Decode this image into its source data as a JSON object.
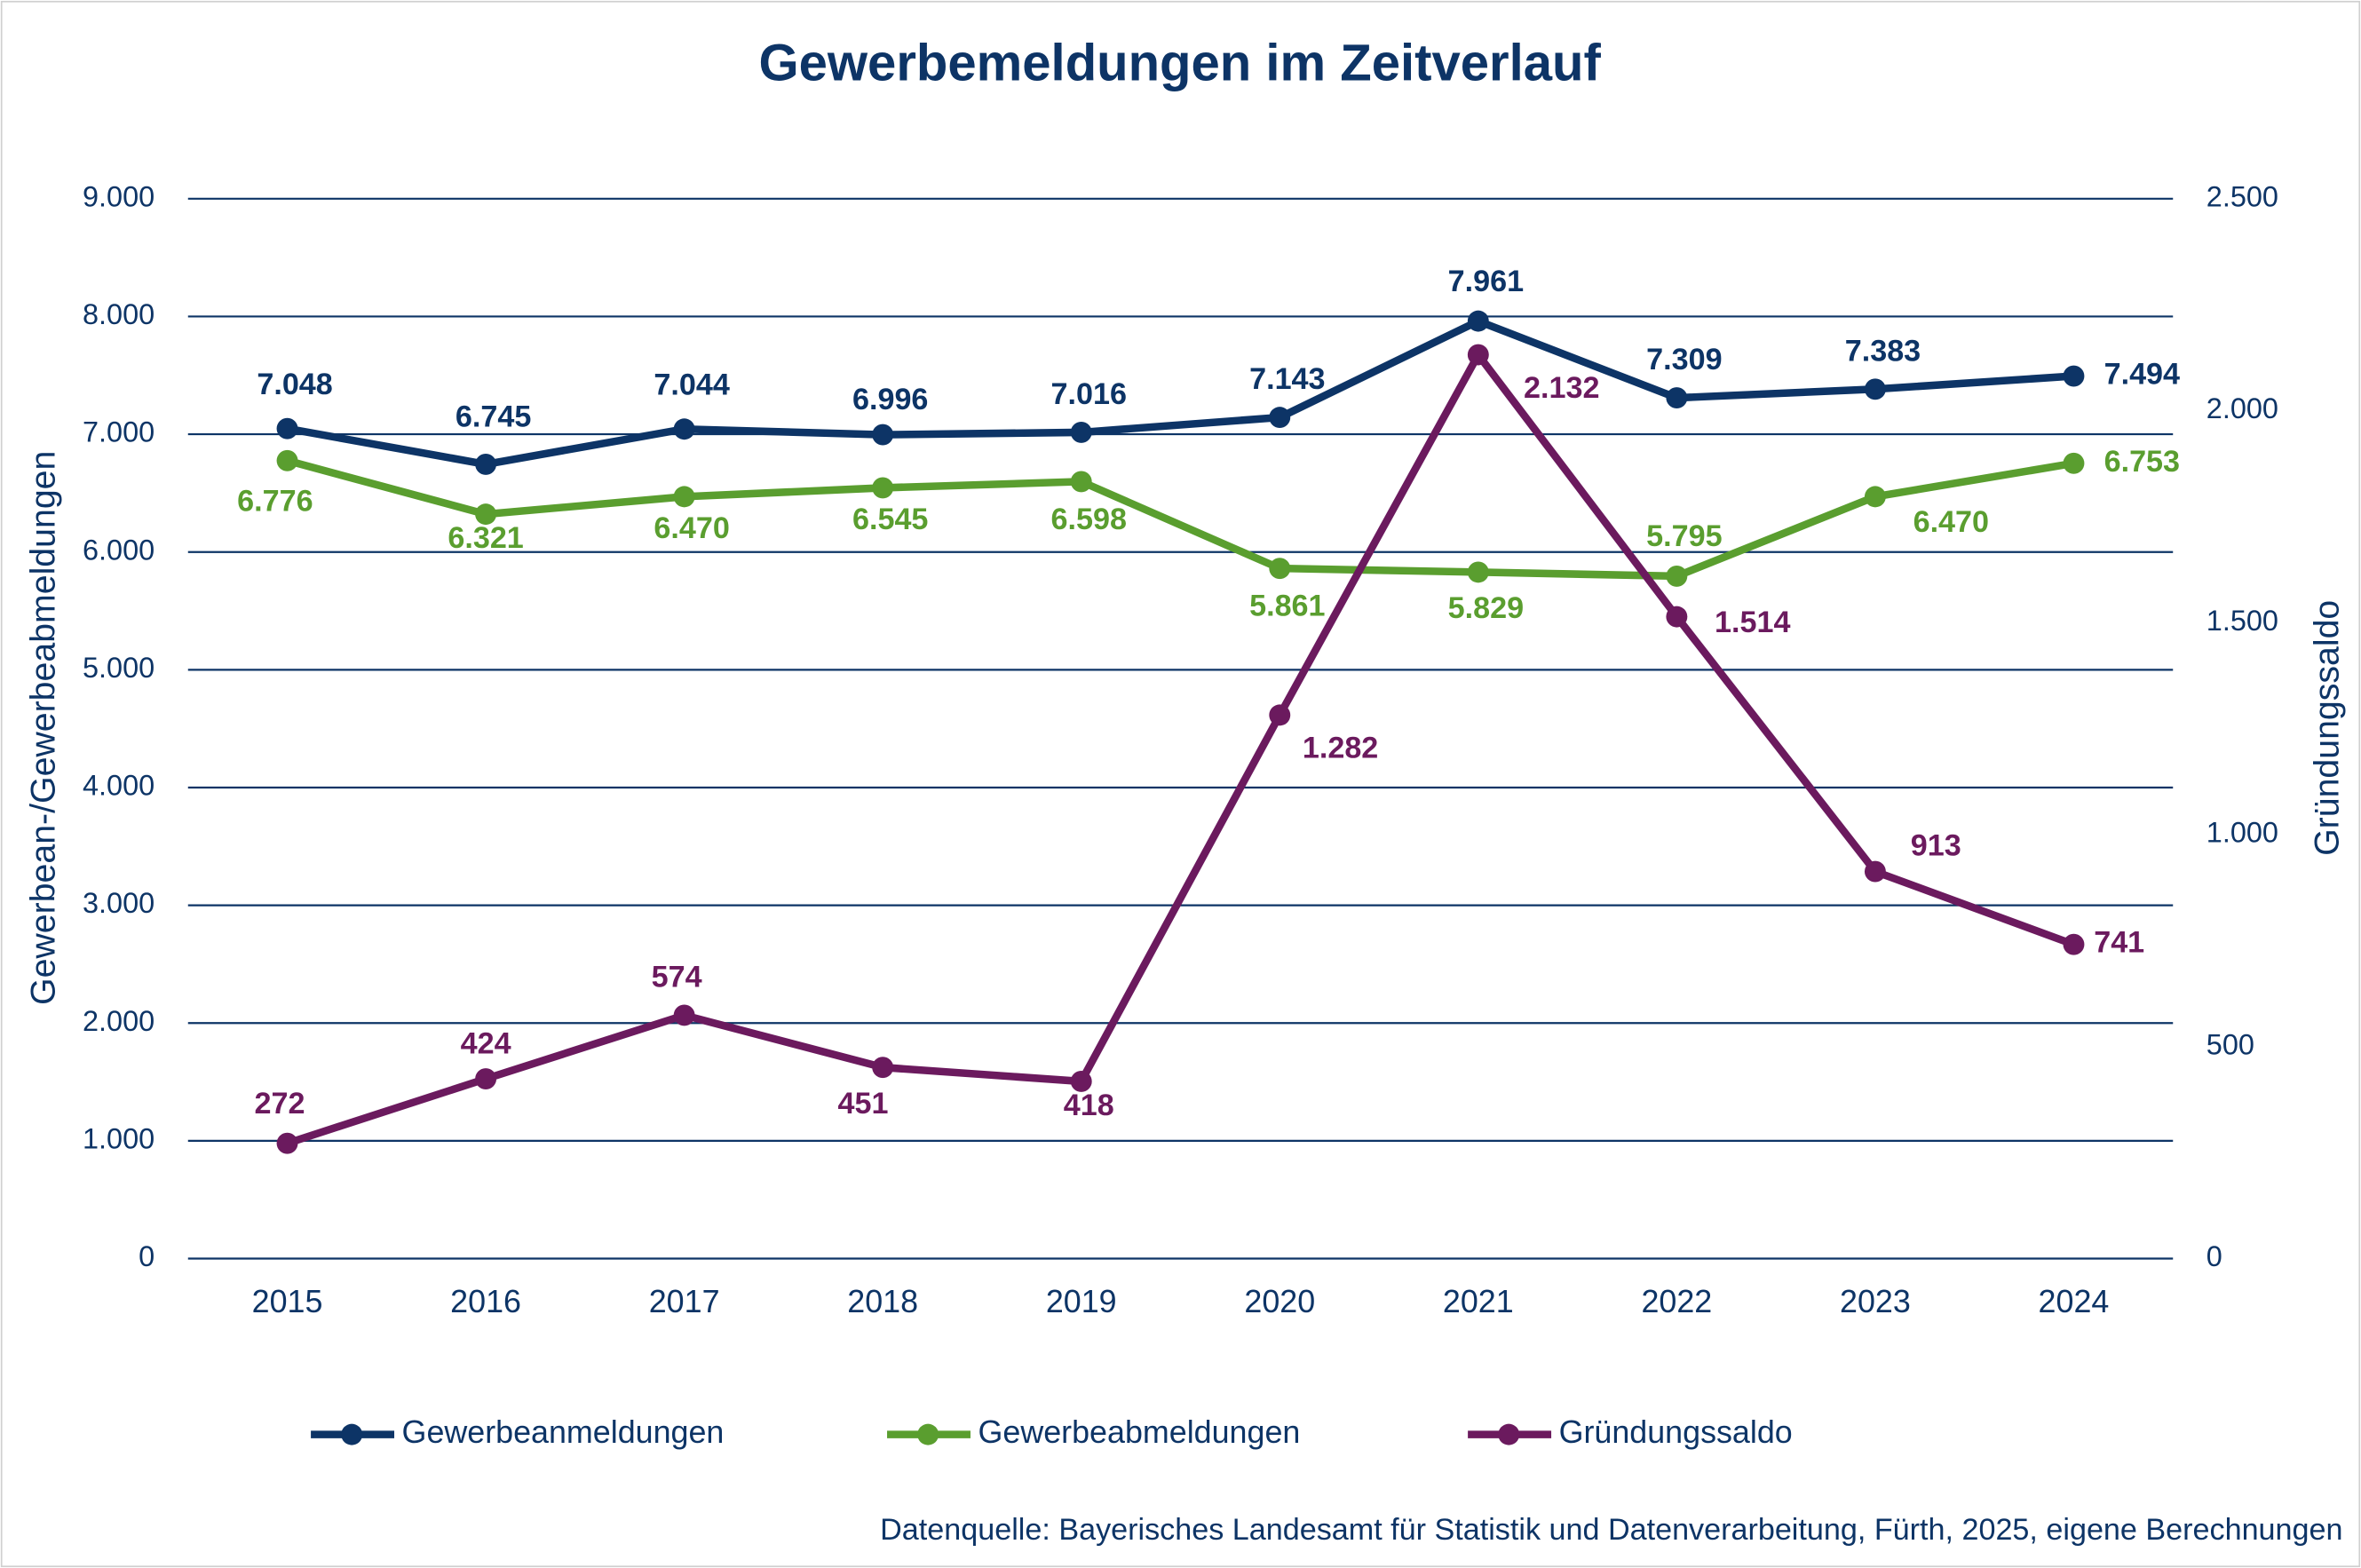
{
  "chart_data": {
    "type": "line",
    "title": "Gewerbemeldungen im Zeitverlauf",
    "ylabel": "Gewerbean-/Gewerbeabmeldungen",
    "y2label": "Gründungssaldo",
    "source": "Datenquelle: Bayerisches Landesamt für Statistik und Datenverarbeitung, Fürth, 2025, eigene Berechnungen",
    "categories": [
      "2015",
      "2016",
      "2017",
      "2018",
      "2019",
      "2020",
      "2021",
      "2022",
      "2023",
      "2024"
    ],
    "series": [
      {
        "name": "Gewerbeanmeldungen",
        "color": "#0d3466",
        "values": [
          7048,
          6745,
          7044,
          6996,
          7016,
          7143,
          7961,
          7309,
          7383,
          7494
        ],
        "value_labels": [
          "7.048",
          "6.745",
          "7.044",
          "6.996",
          "7.016",
          "7.143",
          "7.961",
          "7.309",
          "7.383",
          "7.494"
        ]
      },
      {
        "name": "Gewerbeabmeldungen",
        "color": "#5a9e2f",
        "values": [
          6776,
          6321,
          6470,
          6545,
          6598,
          5861,
          5829,
          5795,
          6470,
          6753
        ],
        "value_labels": [
          "6.776",
          "6.321",
          "6.470",
          "6.545",
          "6.598",
          "5.861",
          "5.829",
          "5.795",
          "6.470",
          "6.753"
        ]
      },
      {
        "name": "Gründungssaldo",
        "color": "#6b1a5e",
        "axis": "y2",
        "values": [
          272,
          424,
          574,
          451,
          418,
          1282,
          2132,
          1514,
          913,
          741
        ],
        "value_labels": [
          "272",
          "424",
          "574",
          "451",
          "418",
          "1.282",
          "2.132",
          "1.514",
          "913",
          "741"
        ]
      }
    ],
    "ylim": [
      0,
      9000
    ],
    "yticks": [
      0,
      {
        "value": 1000,
        "label": "1.000"
      },
      {
        "value": 2000,
        "label": "2.000"
      },
      {
        "value": 3000,
        "label": "3.000"
      },
      {
        "value": 4000,
        "label": "4.000"
      },
      {
        "value": 5000,
        "label": "5.000"
      },
      {
        "value": 6000,
        "label": "6.000"
      },
      {
        "value": 7000,
        "label": "7.000"
      },
      {
        "value": 8000,
        "label": "8.000"
      },
      {
        "value": 9000,
        "label": "9.000"
      }
    ],
    "y2lim": [
      0,
      2500
    ],
    "y2ticks": [
      0,
      500,
      {
        "value": 1000,
        "label": "1.000"
      },
      {
        "value": 1500,
        "label": "1.500"
      },
      {
        "value": 2000,
        "label": "2.000"
      },
      {
        "value": 2500,
        "label": "2.500"
      }
    ],
    "grid": true,
    "legend": "bottom"
  }
}
